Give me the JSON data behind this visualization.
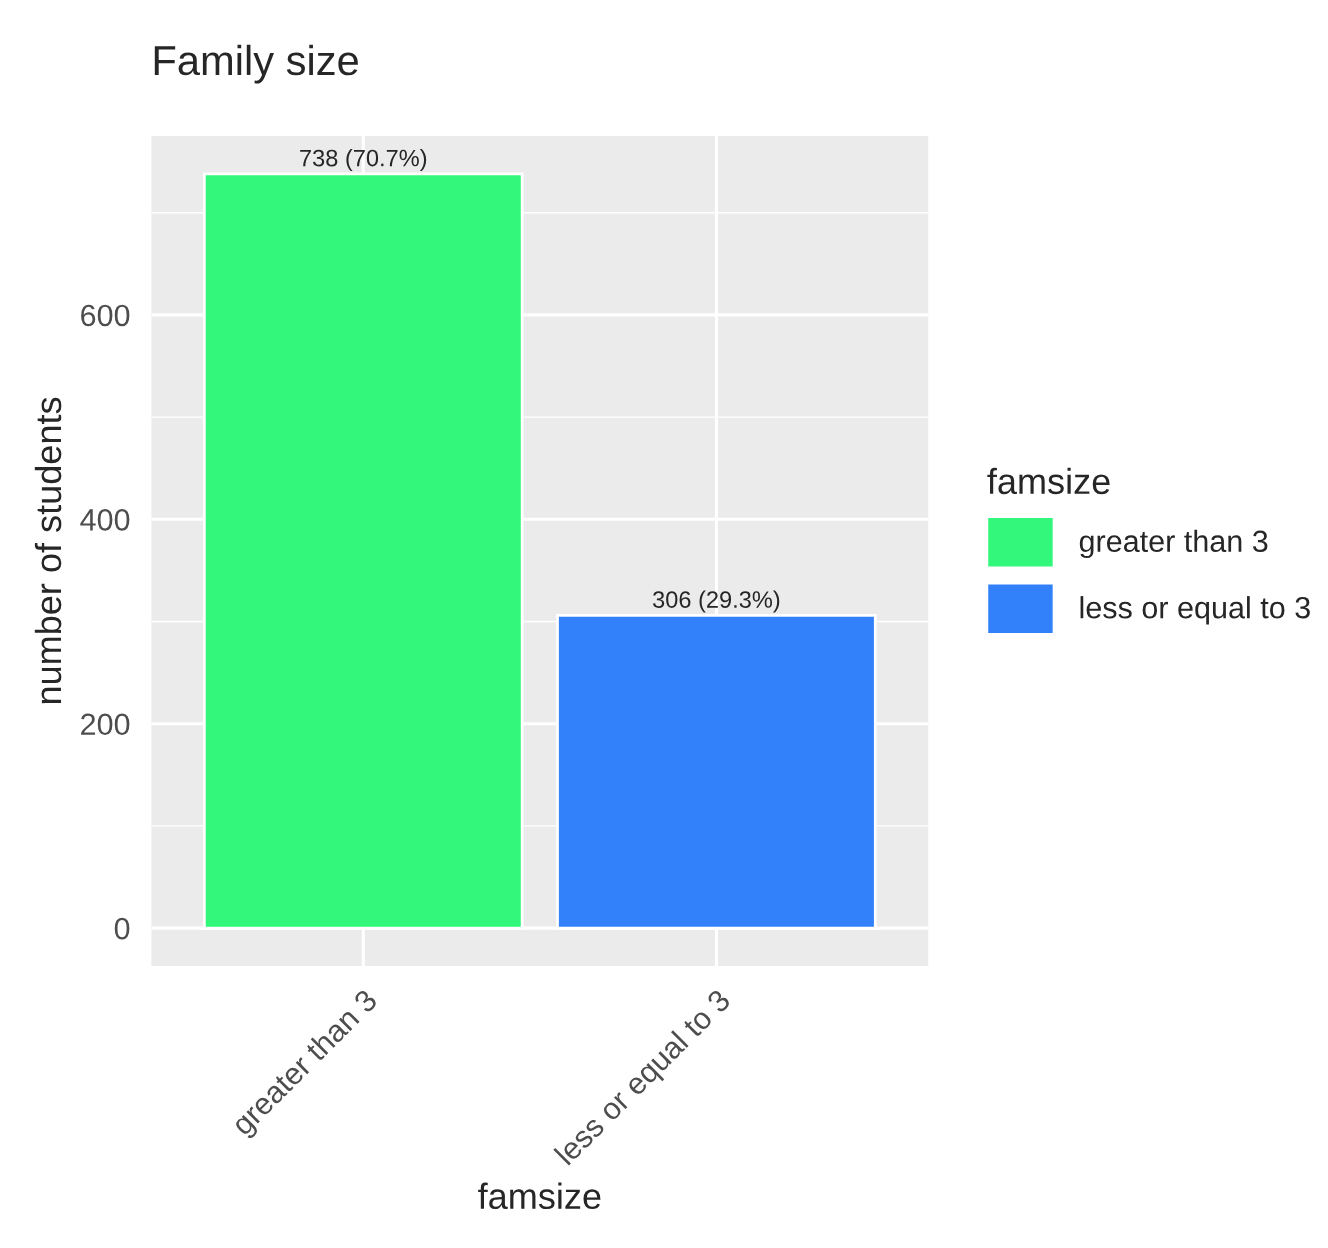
{
  "chart_data": {
    "type": "bar",
    "title": "Family size",
    "xlabel": "famsize",
    "ylabel": "number of students",
    "legend_title": "famsize",
    "categories": [
      "greater than 3",
      "less or equal to 3"
    ],
    "series": [
      {
        "name": "greater than 3",
        "color": "#33f77a",
        "values": [
          738,
          null
        ],
        "value_labels": [
          "738 (70.7%)",
          null
        ]
      },
      {
        "name": "less or equal to 3",
        "color": "#3380fb",
        "values": [
          null,
          306
        ],
        "value_labels": [
          null,
          "306 (29.3%)"
        ]
      }
    ],
    "ylim": [
      -37,
      775
    ],
    "yticks": [
      0,
      200,
      400,
      600
    ],
    "grid": true,
    "legend": "right"
  }
}
